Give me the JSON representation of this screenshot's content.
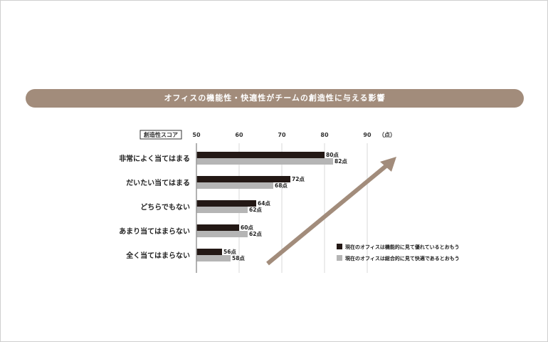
{
  "chart_data": {
    "type": "bar",
    "orientation": "horizontal",
    "title": "オフィスの機能性・快適性がチームの創造性に与える影響",
    "axis_label": "創造性スコア",
    "unit_label": "（点）",
    "value_suffix": "点",
    "xlim": [
      50,
      90
    ],
    "ticks": [
      50,
      60,
      70,
      80,
      90
    ],
    "grid": true,
    "legend_position": "bottom-right",
    "categories": [
      "非常によく当てはまる",
      "だいたい当てはまる",
      "どちらでもない",
      "あまり当てはまらない",
      "全く当てはまらない"
    ],
    "series": [
      {
        "name": "現在のオフィスは機能的に見て優れているとおもう",
        "color": "#231815",
        "values": [
          80,
          72,
          64,
          60,
          56
        ]
      },
      {
        "name": "現在のオフィスは総合的に見て快適であるとおもう",
        "color": "#b5b5b5",
        "values": [
          82,
          68,
          62,
          62,
          58
        ]
      }
    ],
    "arrow_color": "#a28c7b"
  }
}
